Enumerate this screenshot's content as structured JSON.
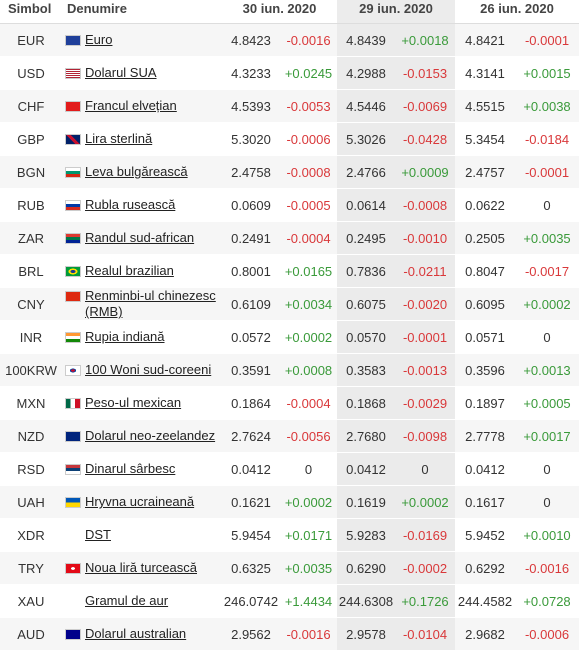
{
  "table": {
    "header": [
      "Simbol",
      "Denumire",
      "30 iun. 2020",
      "29 iun. 2020",
      "26 iun. 2020"
    ],
    "rows": [
      [
        "EUR",
        "Euro",
        "4.8423",
        "-0.0016",
        "4.8439",
        "+0.0018",
        "4.8421",
        "-0.0001"
      ],
      [
        "USD",
        "Dolarul SUA",
        "4.3233",
        "+0.0245",
        "4.2988",
        "-0.0153",
        "4.3141",
        "+0.0015"
      ],
      [
        "CHF",
        "Francul elvețian",
        "4.5393",
        "-0.0053",
        "4.5446",
        "-0.0069",
        "4.5515",
        "+0.0038"
      ],
      [
        "GBP",
        "Lira sterlină",
        "5.3020",
        "-0.0006",
        "5.3026",
        "-0.0428",
        "5.3454",
        "-0.0184"
      ],
      [
        "BGN",
        "Leva bulgărească",
        "2.4758",
        "-0.0008",
        "2.4766",
        "+0.0009",
        "2.4757",
        "-0.0001"
      ],
      [
        "RUB",
        "Rubla rusească",
        "0.0609",
        "-0.0005",
        "0.0614",
        "-0.0008",
        "0.0622",
        "0"
      ],
      [
        "ZAR",
        "Randul sud-african",
        "0.2491",
        "-0.0004",
        "0.2495",
        "-0.0010",
        "0.2505",
        "+0.0035"
      ],
      [
        "BRL",
        "Realul brazilian",
        "0.8001",
        "+0.0165",
        "0.7836",
        "-0.0211",
        "0.8047",
        "-0.0017"
      ],
      [
        "CNY",
        "Renminbi-ul chinezesc (RMB)",
        "0.6109",
        "+0.0034",
        "0.6075",
        "-0.0020",
        "0.6095",
        "+0.0002"
      ],
      [
        "INR",
        "Rupia indiană",
        "0.0572",
        "+0.0002",
        "0.0570",
        "-0.0001",
        "0.0571",
        "0"
      ],
      [
        "100KRW",
        "100 Woni sud-coreeni",
        "0.3591",
        "+0.0008",
        "0.3583",
        "-0.0013",
        "0.3596",
        "+0.0013"
      ],
      [
        "MXN",
        "Peso-ul mexican",
        "0.1864",
        "-0.0004",
        "0.1868",
        "-0.0029",
        "0.1897",
        "+0.0005"
      ],
      [
        "NZD",
        "Dolarul neo-zeelandez",
        "2.7624",
        "-0.0056",
        "2.7680",
        "-0.0098",
        "2.7778",
        "+0.0017"
      ],
      [
        "RSD",
        "Dinarul sârbesc",
        "0.0412",
        "0",
        "0.0412",
        "0",
        "0.0412",
        "0"
      ],
      [
        "UAH",
        "Hryvna ucraineană",
        "0.1621",
        "+0.0002",
        "0.1619",
        "+0.0002",
        "0.1617",
        "0"
      ],
      [
        "XDR",
        "DST",
        "5.9454",
        "+0.0171",
        "5.9283",
        "-0.0169",
        "5.9452",
        "+0.0010"
      ],
      [
        "TRY",
        "Noua liră turcească",
        "0.6325",
        "+0.0035",
        "0.6290",
        "-0.0002",
        "0.6292",
        "-0.0016"
      ],
      [
        "XAU",
        "Gramul de aur",
        "246.0742",
        "+1.4434",
        "244.6308",
        "+0.1726",
        "244.4582",
        "+0.0728"
      ],
      [
        "AUD",
        "Dolarul australian",
        "2.9562",
        "-0.0016",
        "2.9578",
        "-0.0104",
        "2.9682",
        "-0.0006"
      ]
    ]
  }
}
